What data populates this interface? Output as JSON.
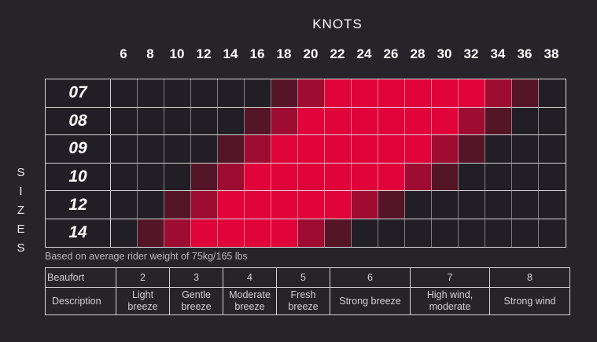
{
  "title": "KNOTS",
  "sizes_axis_label": "SIZES",
  "footnote": "Based on average rider weight of 75kg/165 lbs",
  "colors": {
    "background": "#262329",
    "empty_cell": "#211f25",
    "marginal_red": "#541527",
    "mid_red": "#9e0c32",
    "bright_red": "#e1043a",
    "grid_line_horizontal": "rgba(255,255,255,0.82)",
    "grid_line_vertical": "rgba(255,255,255,0.42)",
    "text_primary": "#ffffff",
    "text_secondary": "#b8b8b8"
  },
  "chart_data": {
    "type": "heatmap",
    "title": "KNOTS",
    "xlabel": "KNOTS",
    "ylabel": "SIZES",
    "x_categories": [
      "6",
      "8",
      "10",
      "12",
      "14",
      "16",
      "18",
      "20",
      "22",
      "24",
      "26",
      "28",
      "30",
      "32",
      "34",
      "36",
      "38"
    ],
    "y_categories": [
      "07",
      "08",
      "09",
      "10",
      "12",
      "14"
    ],
    "values": [
      [
        0,
        0,
        0,
        0,
        0,
        0,
        1,
        2,
        3,
        3,
        3,
        3,
        3,
        3,
        2,
        1,
        0
      ],
      [
        0,
        0,
        0,
        0,
        0,
        1,
        2,
        3,
        3,
        3,
        3,
        3,
        3,
        2,
        1,
        0,
        0
      ],
      [
        0,
        0,
        0,
        0,
        1,
        2,
        3,
        3,
        3,
        3,
        3,
        3,
        2,
        1,
        0,
        0,
        0
      ],
      [
        0,
        0,
        0,
        1,
        2,
        3,
        3,
        3,
        3,
        3,
        3,
        2,
        1,
        0,
        0,
        0,
        0
      ],
      [
        0,
        0,
        1,
        2,
        3,
        3,
        3,
        3,
        3,
        2,
        1,
        0,
        0,
        0,
        0,
        0,
        0
      ],
      [
        0,
        1,
        2,
        3,
        3,
        3,
        3,
        2,
        1,
        0,
        0,
        0,
        0,
        0,
        0,
        0,
        0
      ]
    ],
    "level_colors": {
      "0": "#211f25",
      "1": "#541527",
      "2": "#9e0c32",
      "3": "#e1043a"
    },
    "grid": true,
    "legend_position": "none"
  },
  "beaufort_table": {
    "header": [
      "Beaufort",
      "2",
      "3",
      "4",
      "5",
      "6",
      "7",
      "8"
    ],
    "descriptions": [
      "Description",
      "Light breeze",
      "Gentle breeze",
      "Moderate breeze",
      "Fresh breeze",
      "Strong breeze",
      "High wind, moderate",
      "Strong wind"
    ]
  }
}
